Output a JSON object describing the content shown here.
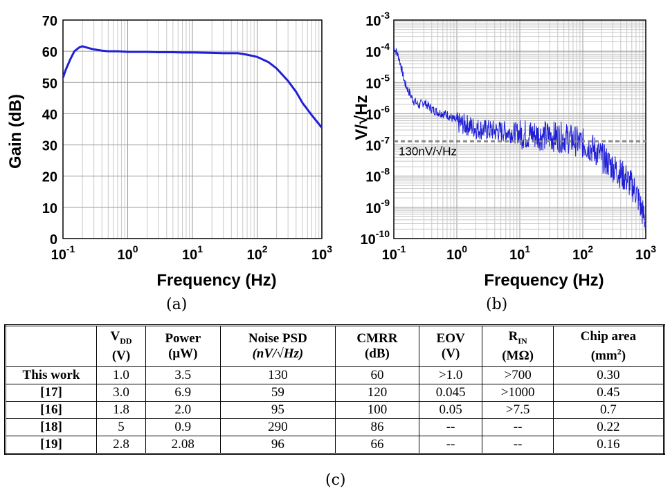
{
  "chart_data": [
    {
      "type": "line",
      "id": "a",
      "xlabel": "Frequency (Hz)",
      "ylabel": "Gain (dB)",
      "xscale": "log",
      "xlim": [
        0.1,
        1000
      ],
      "ylim": [
        0,
        70
      ],
      "grid": true,
      "xticks": [
        "10-1",
        "100",
        "101",
        "102",
        "103"
      ],
      "yticks": [
        "0",
        "10",
        "20",
        "30",
        "40",
        "50",
        "60",
        "70"
      ],
      "color": "#1f1fd6",
      "series": [
        {
          "x": [
            0.1,
            0.11,
            0.13,
            0.15,
            0.18,
            0.2,
            0.25,
            0.3,
            0.4,
            0.5,
            0.7,
            1,
            2,
            3,
            5,
            7,
            10,
            20,
            30,
            50,
            70,
            100,
            150,
            200,
            300,
            400,
            500,
            700,
            1000
          ],
          "y": [
            51.5,
            54,
            57.5,
            60,
            61.3,
            61.6,
            61,
            60.6,
            60.2,
            60,
            60,
            59.8,
            59.8,
            59.7,
            59.7,
            59.6,
            59.6,
            59.5,
            59.4,
            59.4,
            58.9,
            58.2,
            56.5,
            54.5,
            50.5,
            47,
            43.5,
            39.5,
            35.5
          ]
        }
      ]
    },
    {
      "type": "line",
      "id": "b",
      "xlabel": "Frequency (Hz)",
      "ylabel": "V/√Hz",
      "xscale": "log",
      "yscale": "log",
      "xlim": [
        0.1,
        1000
      ],
      "ylim": [
        1e-10,
        0.001
      ],
      "grid": true,
      "xticks": [
        "10-1",
        "100",
        "101",
        "102",
        "103"
      ],
      "yticks": [
        "10-10",
        "10-9",
        "10-8",
        "10-7",
        "10-6",
        "10-5",
        "10-4",
        "10-3"
      ],
      "annotation": "130nV/√Hz",
      "reference_line": 1.3e-07,
      "color": "#1f1fd6",
      "series": [
        {
          "x": [
            0.1,
            0.12,
            0.15,
            0.2,
            0.25,
            0.3,
            0.4,
            0.5,
            0.7,
            1,
            1.5,
            2,
            3,
            5,
            7,
            10,
            20,
            30,
            50,
            70,
            100,
            150,
            200,
            300,
            500,
            700,
            1000
          ],
          "y": [
            0.00015,
            7e-05,
            1e-05,
            3e-06,
            2e-06,
            2.5e-06,
            1.5e-06,
            1.2e-06,
            1e-06,
            6e-07,
            5e-07,
            4e-07,
            3.5e-07,
            3.2e-07,
            3e-07,
            2.8e-07,
            2.6e-07,
            2.4e-07,
            2.2e-07,
            1.8e-07,
            1.4e-07,
            9e-08,
            5e-08,
            2.5e-08,
            1e-08,
            4e-09,
            4e-10
          ]
        }
      ]
    }
  ],
  "captions": {
    "a": "(a)",
    "b": "(b)",
    "c": "(c)"
  },
  "table": {
    "headers": [
      {
        "main": "V",
        "sub": "DD",
        "unit": "(V)"
      },
      {
        "main": "Power",
        "unit": "(μW)"
      },
      {
        "main": "Noise PSD",
        "unit": "(nV/√Hz)"
      },
      {
        "main": "CMRR",
        "unit": "(dB)"
      },
      {
        "main": "EOV",
        "unit": "(V)"
      },
      {
        "main": "R",
        "sub": "IN",
        "unit": "(MΩ)"
      },
      {
        "main": "Chip area",
        "unit": "(mm2)"
      }
    ],
    "rows": [
      {
        "label": "This work",
        "cells": [
          "1.0",
          "3.5",
          "130",
          "60",
          ">1.0",
          ">700",
          "0.30"
        ]
      },
      {
        "label": "[17]",
        "cells": [
          "3.0",
          "6.9",
          "59",
          "120",
          "0.045",
          ">1000",
          "0.45"
        ]
      },
      {
        "label": "[16]",
        "cells": [
          "1.8",
          "2.0",
          "95",
          "100",
          "0.05",
          ">7.5",
          "0.7"
        ]
      },
      {
        "label": "[18]",
        "cells": [
          "5",
          "0.9",
          "290",
          "86",
          "--",
          "--",
          "0.22"
        ]
      },
      {
        "label": "[19]",
        "cells": [
          "2.8",
          "2.08",
          "96",
          "66",
          "--",
          "--",
          "0.16"
        ]
      }
    ]
  }
}
